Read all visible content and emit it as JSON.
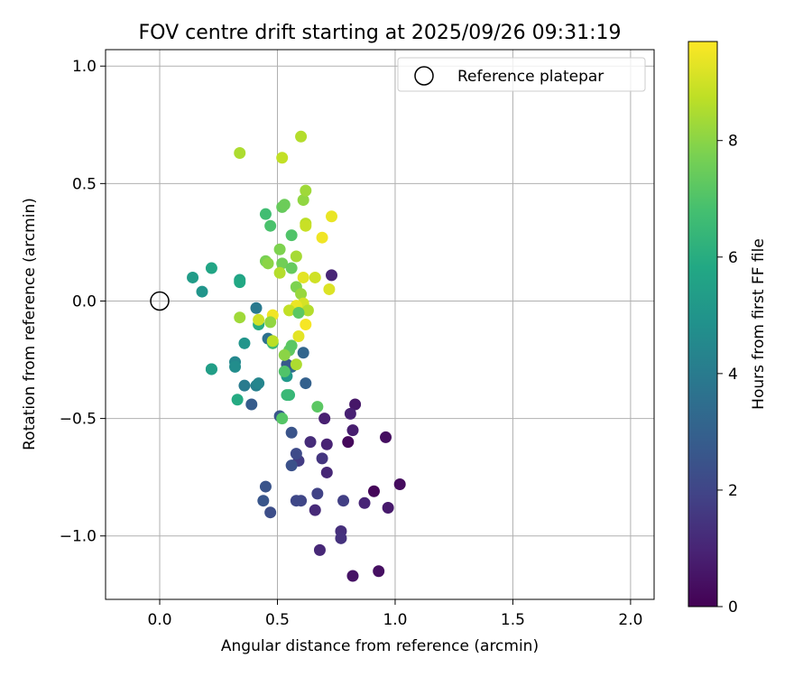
{
  "chart_data": {
    "type": "scatter",
    "title": "FOV centre drift starting at 2025/09/26 09:31:19",
    "xlabel": "Angular distance from reference (arcmin)",
    "ylabel": "Rotation from reference (arcmin)",
    "xlim": [
      -0.23,
      2.1
    ],
    "ylim": [
      -1.27,
      1.07
    ],
    "xticks": [
      0.0,
      0.5,
      1.0,
      1.5,
      2.0
    ],
    "xtick_labels": [
      "0.0",
      "0.5",
      "1.0",
      "1.5",
      "2.0"
    ],
    "yticks": [
      -1.0,
      -0.5,
      0.0,
      0.5,
      1.0
    ],
    "ytick_labels": [
      "−1.0",
      "−0.5",
      "0.0",
      "0.5",
      "1.0"
    ],
    "grid": true,
    "legend": {
      "position": "top-right",
      "entries": [
        {
          "label": "Reference platepar",
          "marker": "open-circle"
        }
      ]
    },
    "reference_point": {
      "x": 0.0,
      "y": 0.0
    },
    "colorbar": {
      "label": "Hours from first FF file",
      "colormap": "viridis",
      "range": [
        0,
        9.7
      ],
      "ticks": [
        0,
        2,
        4,
        6,
        8
      ],
      "tick_labels": [
        "0",
        "2",
        "4",
        "6",
        "8"
      ]
    },
    "points": [
      {
        "x": 1.02,
        "y": -0.78,
        "t": 0.3
      },
      {
        "x": 0.93,
        "y": -1.15,
        "t": 0.4
      },
      {
        "x": 0.82,
        "y": -1.17,
        "t": 0.5
      },
      {
        "x": 0.8,
        "y": -0.6,
        "t": 0.2
      },
      {
        "x": 0.91,
        "y": -0.81,
        "t": 0.15
      },
      {
        "x": 0.96,
        "y": -0.58,
        "t": 0.35
      },
      {
        "x": 0.97,
        "y": -0.88,
        "t": 0.7
      },
      {
        "x": 0.83,
        "y": -0.44,
        "t": 0.6
      },
      {
        "x": 0.82,
        "y": -0.55,
        "t": 0.8
      },
      {
        "x": 0.81,
        "y": -0.48,
        "t": 0.9
      },
      {
        "x": 0.87,
        "y": -0.86,
        "t": 1.0
      },
      {
        "x": 0.7,
        "y": -0.5,
        "t": 0.85
      },
      {
        "x": 0.71,
        "y": -0.61,
        "t": 0.95
      },
      {
        "x": 0.71,
        "y": -0.73,
        "t": 1.05
      },
      {
        "x": 0.68,
        "y": -1.06,
        "t": 1.1
      },
      {
        "x": 0.77,
        "y": -0.98,
        "t": 1.3
      },
      {
        "x": 0.77,
        "y": -1.01,
        "t": 1.4
      },
      {
        "x": 0.66,
        "y": -0.89,
        "t": 1.15
      },
      {
        "x": 0.64,
        "y": -0.6,
        "t": 1.2
      },
      {
        "x": 0.69,
        "y": -0.67,
        "t": 1.5
      },
      {
        "x": 0.73,
        "y": 0.11,
        "t": 1.0
      },
      {
        "x": 0.78,
        "y": -0.85,
        "t": 1.8
      },
      {
        "x": 0.67,
        "y": -0.82,
        "t": 1.9
      },
      {
        "x": 0.6,
        "y": -0.85,
        "t": 2.0
      },
      {
        "x": 0.58,
        "y": -0.85,
        "t": 2.1
      },
      {
        "x": 0.59,
        "y": -0.68,
        "t": 1.7
      },
      {
        "x": 0.58,
        "y": -0.65,
        "t": 2.2
      },
      {
        "x": 0.56,
        "y": -0.7,
        "t": 2.4
      },
      {
        "x": 0.56,
        "y": -0.56,
        "t": 2.5
      },
      {
        "x": 0.51,
        "y": -0.49,
        "t": 2.6
      },
      {
        "x": 0.45,
        "y": -0.79,
        "t": 2.5
      },
      {
        "x": 0.44,
        "y": -0.85,
        "t": 2.6
      },
      {
        "x": 0.47,
        "y": -0.9,
        "t": 2.3
      },
      {
        "x": 0.39,
        "y": -0.44,
        "t": 2.8
      },
      {
        "x": 0.62,
        "y": -0.35,
        "t": 3.0
      },
      {
        "x": 0.61,
        "y": -0.22,
        "t": 3.2
      },
      {
        "x": 0.56,
        "y": -0.28,
        "t": 3.4
      },
      {
        "x": 0.54,
        "y": -0.27,
        "t": 2.7
      },
      {
        "x": 0.46,
        "y": -0.16,
        "t": 3.6
      },
      {
        "x": 0.41,
        "y": -0.03,
        "t": 3.9
      },
      {
        "x": 0.36,
        "y": -0.36,
        "t": 4.0
      },
      {
        "x": 0.41,
        "y": -0.36,
        "t": 4.2
      },
      {
        "x": 0.42,
        "y": -0.35,
        "t": 4.4
      },
      {
        "x": 0.32,
        "y": -0.26,
        "t": 4.5
      },
      {
        "x": 0.32,
        "y": -0.28,
        "t": 4.7
      },
      {
        "x": 0.36,
        "y": -0.18,
        "t": 5.0
      },
      {
        "x": 0.22,
        "y": -0.29,
        "t": 5.2
      },
      {
        "x": 0.22,
        "y": -0.29,
        "t": 5.4
      },
      {
        "x": 0.18,
        "y": 0.04,
        "t": 5.0
      },
      {
        "x": 0.14,
        "y": 0.1,
        "t": 5.3
      },
      {
        "x": 0.22,
        "y": 0.14,
        "t": 5.7
      },
      {
        "x": 0.34,
        "y": 0.09,
        "t": 5.6
      },
      {
        "x": 0.34,
        "y": 0.08,
        "t": 5.8
      },
      {
        "x": 0.33,
        "y": -0.42,
        "t": 5.9
      },
      {
        "x": 0.54,
        "y": -0.32,
        "t": 5.2
      },
      {
        "x": 0.55,
        "y": -0.4,
        "t": 6.4
      },
      {
        "x": 0.54,
        "y": -0.4,
        "t": 6.5
      },
      {
        "x": 0.52,
        "y": -0.5,
        "t": 7.1
      },
      {
        "x": 0.67,
        "y": -0.45,
        "t": 7.2
      },
      {
        "x": 0.53,
        "y": -0.3,
        "t": 7.0
      },
      {
        "x": 0.55,
        "y": -0.21,
        "t": 7.3
      },
      {
        "x": 0.56,
        "y": -0.19,
        "t": 7.2
      },
      {
        "x": 0.48,
        "y": -0.18,
        "t": 6.6
      },
      {
        "x": 0.42,
        "y": -0.1,
        "t": 6.0
      },
      {
        "x": 0.45,
        "y": 0.37,
        "t": 6.7
      },
      {
        "x": 0.47,
        "y": 0.32,
        "t": 6.9
      },
      {
        "x": 0.52,
        "y": 0.4,
        "t": 7.4
      },
      {
        "x": 0.53,
        "y": 0.41,
        "t": 7.5
      },
      {
        "x": 0.56,
        "y": 0.28,
        "t": 7.0
      },
      {
        "x": 0.51,
        "y": 0.22,
        "t": 7.8
      },
      {
        "x": 0.52,
        "y": 0.16,
        "t": 7.6
      },
      {
        "x": 0.45,
        "y": 0.17,
        "t": 7.7
      },
      {
        "x": 0.46,
        "y": 0.16,
        "t": 8.0
      },
      {
        "x": 0.51,
        "y": 0.12,
        "t": 8.6
      },
      {
        "x": 0.56,
        "y": 0.14,
        "t": 7.4
      },
      {
        "x": 0.58,
        "y": 0.06,
        "t": 7.8
      },
      {
        "x": 0.6,
        "y": 0.03,
        "t": 8.2
      },
      {
        "x": 0.58,
        "y": 0.19,
        "t": 8.4
      },
      {
        "x": 0.61,
        "y": 0.43,
        "t": 8.1
      },
      {
        "x": 0.62,
        "y": 0.47,
        "t": 8.3
      },
      {
        "x": 0.62,
        "y": 0.33,
        "t": 8.7
      },
      {
        "x": 0.62,
        "y": 0.32,
        "t": 8.9
      },
      {
        "x": 0.34,
        "y": 0.63,
        "t": 8.5
      },
      {
        "x": 0.52,
        "y": 0.61,
        "t": 8.8
      },
      {
        "x": 0.6,
        "y": 0.7,
        "t": 8.6
      },
      {
        "x": 0.73,
        "y": 0.36,
        "t": 9.4
      },
      {
        "x": 0.69,
        "y": 0.27,
        "t": 9.5
      },
      {
        "x": 0.66,
        "y": 0.1,
        "t": 9.0
      },
      {
        "x": 0.61,
        "y": 0.1,
        "t": 9.3
      },
      {
        "x": 0.72,
        "y": 0.05,
        "t": 9.2
      },
      {
        "x": 0.61,
        "y": -0.01,
        "t": 9.1
      },
      {
        "x": 0.63,
        "y": -0.04,
        "t": 8.6
      },
      {
        "x": 0.58,
        "y": -0.02,
        "t": 9.4
      },
      {
        "x": 0.55,
        "y": -0.04,
        "t": 8.8
      },
      {
        "x": 0.59,
        "y": -0.05,
        "t": 7.2
      },
      {
        "x": 0.62,
        "y": -0.1,
        "t": 9.6
      },
      {
        "x": 0.59,
        "y": -0.15,
        "t": 9.3
      },
      {
        "x": 0.48,
        "y": -0.06,
        "t": 9.5
      },
      {
        "x": 0.47,
        "y": -0.09,
        "t": 8.1
      },
      {
        "x": 0.42,
        "y": -0.08,
        "t": 9.0
      },
      {
        "x": 0.34,
        "y": -0.07,
        "t": 8.3
      },
      {
        "x": 0.48,
        "y": -0.17,
        "t": 8.7
      },
      {
        "x": 0.53,
        "y": -0.23,
        "t": 8.0
      },
      {
        "x": 0.58,
        "y": -0.27,
        "t": 8.5
      }
    ]
  }
}
